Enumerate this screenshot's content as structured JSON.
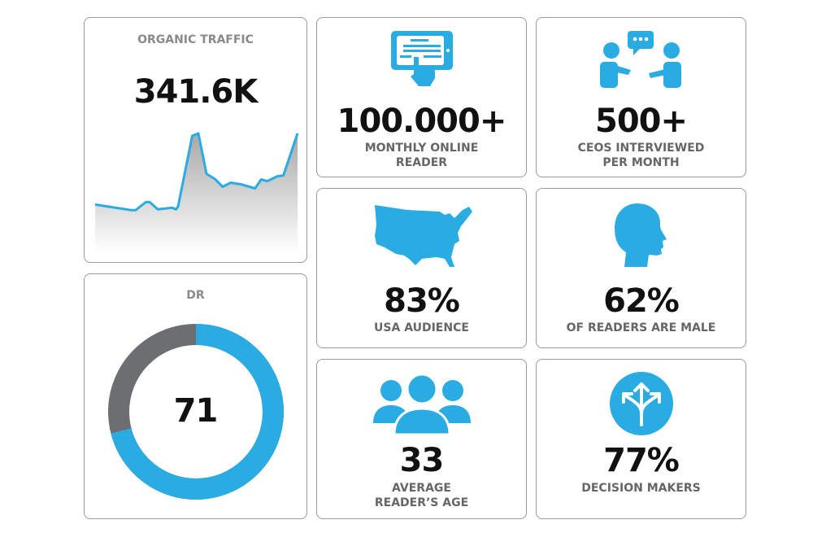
{
  "colors": {
    "accent": "#2aace3",
    "gray": "#6d6e71",
    "text": "#111111",
    "label": "#8a8a8a"
  },
  "traffic": {
    "label": "ORGANIC TRAFFIC",
    "value": "341.6K"
  },
  "dr": {
    "label": "DR",
    "value": "71",
    "percent": 71
  },
  "stats": [
    {
      "icon": "tablet-touch-icon",
      "value": "100.000+",
      "caption1": "MONTHLY ONLINE",
      "caption2": "READER"
    },
    {
      "icon": "conversation-icon",
      "value": "500+",
      "caption1": "CEOS INTERVIEWED",
      "caption2": "PER MONTH"
    },
    {
      "icon": "usa-map-icon",
      "value": "83%",
      "caption1": "USA AUDIENCE",
      "caption2": ""
    },
    {
      "icon": "male-head-icon",
      "value": "62%",
      "caption1": "OF READERS ARE MALE",
      "caption2": ""
    },
    {
      "icon": "audience-group-icon",
      "value": "33",
      "caption1": "AVERAGE",
      "caption2": "READER’S AGE"
    },
    {
      "icon": "decision-arrows-icon",
      "value": "77%",
      "caption1": "DECISION MAKERS",
      "caption2": ""
    }
  ],
  "chart_data": {
    "type": "area",
    "title": "ORGANIC TRAFFIC",
    "x": [
      0,
      18,
      18.5,
      20,
      25,
      27,
      31,
      38,
      40,
      41,
      48,
      51,
      55,
      59,
      63,
      67,
      72,
      79,
      82,
      85,
      90,
      93,
      100
    ],
    "y": [
      60,
      53,
      53,
      53,
      63,
      63,
      54,
      56,
      54,
      58,
      145,
      148,
      98,
      92,
      82,
      87,
      85,
      80,
      91,
      89,
      95,
      96,
      148
    ],
    "ylim": [
      0,
      160
    ]
  }
}
